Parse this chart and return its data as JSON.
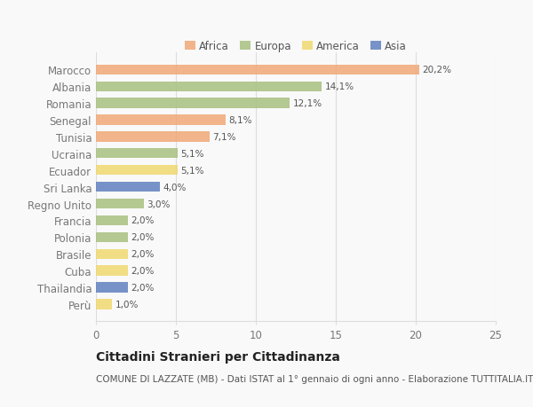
{
  "countries": [
    "Marocco",
    "Albania",
    "Romania",
    "Senegal",
    "Tunisia",
    "Ucraina",
    "Ecuador",
    "Sri Lanka",
    "Regno Unito",
    "Francia",
    "Polonia",
    "Brasile",
    "Cuba",
    "Thailandia",
    "Perù"
  ],
  "values": [
    20.2,
    14.1,
    12.1,
    8.1,
    7.1,
    5.1,
    5.1,
    4.0,
    3.0,
    2.0,
    2.0,
    2.0,
    2.0,
    2.0,
    1.0
  ],
  "labels": [
    "20,2%",
    "14,1%",
    "12,1%",
    "8,1%",
    "7,1%",
    "5,1%",
    "5,1%",
    "4,0%",
    "3,0%",
    "2,0%",
    "2,0%",
    "2,0%",
    "2,0%",
    "2,0%",
    "1,0%"
  ],
  "continents": [
    "Africa",
    "Europa",
    "Europa",
    "Africa",
    "Africa",
    "Europa",
    "America",
    "Asia",
    "Europa",
    "Europa",
    "Europa",
    "America",
    "America",
    "Asia",
    "America"
  ],
  "continent_colors": {
    "Africa": "#F0A878",
    "Europa": "#A8C080",
    "America": "#F0D870",
    "Asia": "#6080C0"
  },
  "legend_order": [
    "Africa",
    "Europa",
    "America",
    "Asia"
  ],
  "title": "Cittadini Stranieri per Cittadinanza",
  "subtitle": "COMUNE DI LAZZATE (MB) - Dati ISTAT al 1° gennaio di ogni anno - Elaborazione TUTTITALIA.IT",
  "xlim": [
    0,
    25
  ],
  "xticks": [
    0,
    5,
    10,
    15,
    20,
    25
  ],
  "background_color": "#f9f9f9",
  "bar_height": 0.6,
  "grid_color": "#dddddd",
  "title_fontsize": 10,
  "subtitle_fontsize": 7.5,
  "tick_fontsize": 8.5,
  "label_fontsize": 7.5,
  "legend_fontsize": 8.5
}
